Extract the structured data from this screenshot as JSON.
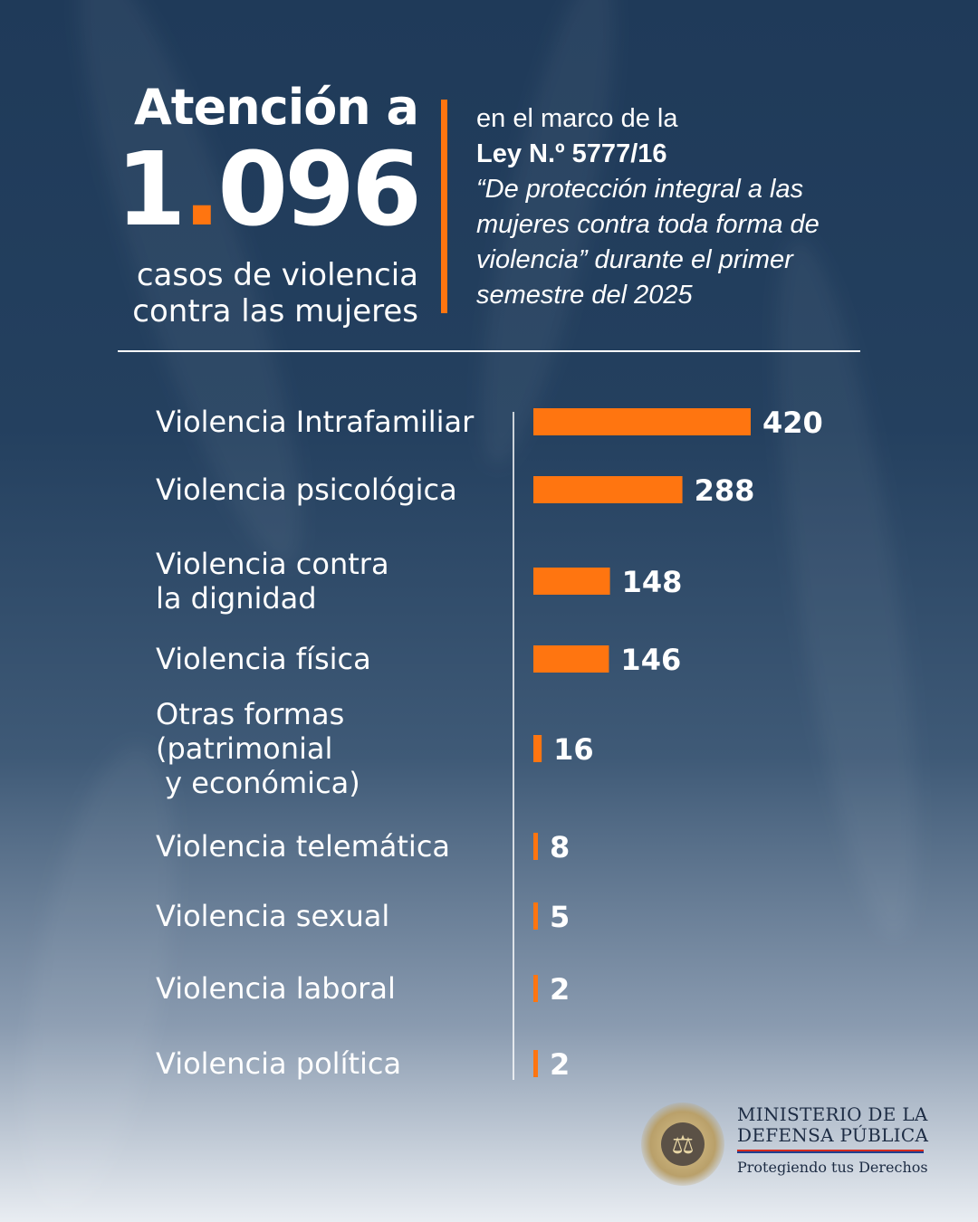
{
  "header": {
    "title_line": "Atención a",
    "number_left": "1",
    "number_dot": ".",
    "number_right": "096",
    "subtitle_line1": "casos de violencia",
    "subtitle_line2": "contra las mujeres",
    "context_intro": "en el marco de la",
    "law_name": "Ley N.º 5777/16",
    "law_quote_lines": [
      "“De protección integral a las",
      "mujeres contra toda forma de",
      "violencia” durante el primer",
      "semestre del 2025"
    ]
  },
  "chart_data": {
    "type": "bar",
    "orientation": "horizontal",
    "categories": [
      [
        "Violencia Intrafamiliar"
      ],
      [
        "Violencia psicológica"
      ],
      [
        "Violencia contra",
        "la dignidad"
      ],
      [
        "Violencia física"
      ],
      [
        "Otras formas",
        "(patrimonial",
        " y económica)"
      ],
      [
        "Violencia telemática"
      ],
      [
        "Violencia sexual"
      ],
      [
        "Violencia laboral"
      ],
      [
        "Violencia política"
      ]
    ],
    "values": [
      420,
      288,
      148,
      146,
      16,
      8,
      5,
      2,
      2
    ],
    "value_labels": [
      "420",
      "288",
      "148",
      "146",
      "16",
      "8",
      "5",
      "2",
      "2"
    ],
    "bar_color": "#ff7510",
    "title": "",
    "xlabel": "",
    "ylabel": "",
    "grid": false,
    "legend": "none"
  },
  "footer": {
    "org_line1": "MINISTERIO DE LA",
    "org_line2": "DEFENSA PÚBLICA",
    "slogan": "Protegiendo tus Derechos",
    "seal_icon": "scales-of-justice-icon"
  },
  "colors": {
    "accent": "#ff7510",
    "background_top": "#1f3a59",
    "background_bottom": "#e9edf2",
    "text": "#ffffff"
  }
}
